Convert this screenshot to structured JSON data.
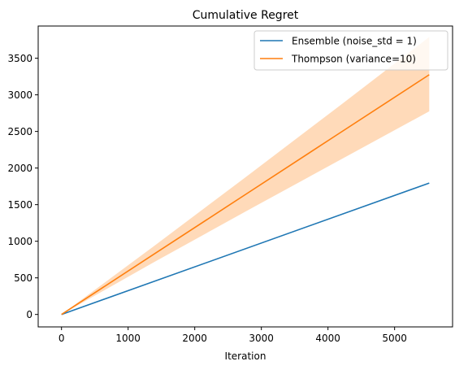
{
  "chart_data": {
    "type": "line",
    "title": "Cumulative Regret",
    "xlabel": "Iteration",
    "ylabel": "",
    "xlim": [
      -350,
      5870
    ],
    "ylim": [
      -170,
      3940
    ],
    "xticks": [
      0,
      1000,
      2000,
      3000,
      4000,
      5000
    ],
    "yticks": [
      0,
      500,
      1000,
      1500,
      2000,
      2500,
      3000,
      3500
    ],
    "grid": false,
    "legend_position": "upper right",
    "series": [
      {
        "name": "Ensemble (noise_std = 1)",
        "color": "#1f77b4",
        "x": [
          0,
          5520
        ],
        "y": [
          0,
          1795
        ]
      },
      {
        "name": "Thompson (variance=10)",
        "color": "#ff7f0e",
        "x": [
          0,
          1380,
          2760,
          4140,
          5520
        ],
        "y": [
          0,
          819,
          1638,
          2457,
          3275
        ],
        "band_color": "#ffdab9",
        "lower": [
          0,
          710,
          1405,
          2090,
          2775
        ],
        "upper": [
          0,
          928,
          1873,
          2826,
          3790
        ]
      }
    ]
  }
}
